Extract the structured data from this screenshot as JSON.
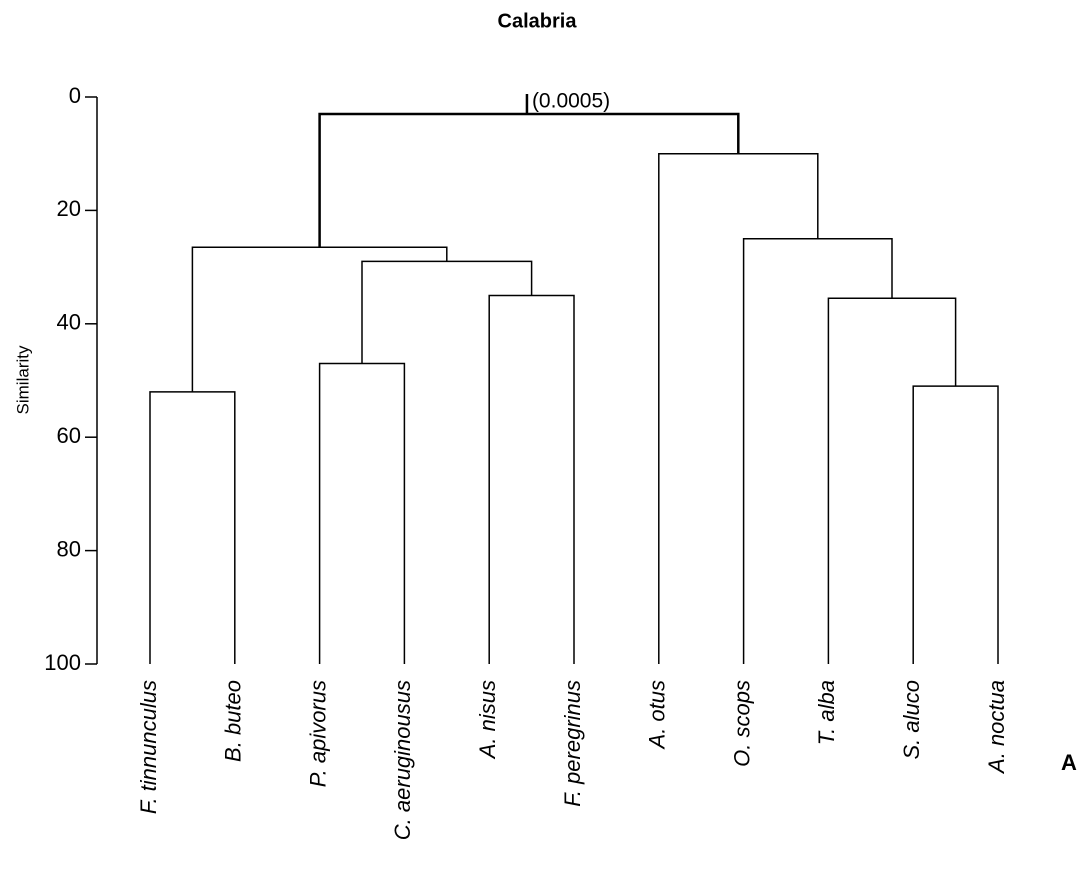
{
  "chart_data": {
    "type": "dendrogram",
    "title": "Calabria",
    "y_label": "Similarity",
    "panel_label": "A",
    "annotation": "(0.0005)",
    "categories": [
      "F. tinnunculus",
      "B. buteo",
      "P. apivorus",
      "C. aeruginousus",
      "A. nisus",
      "F. peregrinus",
      "A. otus",
      "O. scops",
      "T. alba",
      "S. aluco",
      "A. noctua"
    ],
    "merges": [
      {
        "left": 0,
        "right": 1,
        "height": 52
      },
      {
        "left": 2,
        "right": 3,
        "height": 47
      },
      {
        "left": 4,
        "right": 5,
        "height": 35
      },
      {
        "left": 12,
        "right": 13,
        "height": 29
      },
      {
        "left": 11,
        "right": 14,
        "height": 26.5
      },
      {
        "left": 9,
        "right": 10,
        "height": 51
      },
      {
        "left": 8,
        "right": 16,
        "height": 35.5
      },
      {
        "left": 7,
        "right": 17,
        "height": 25
      },
      {
        "left": 6,
        "right": 18,
        "height": 10
      },
      {
        "left": 15,
        "right": 19,
        "height": 3
      }
    ],
    "color": "#000000",
    "ylim": [
      100,
      0
    ],
    "yticks": [
      0,
      20,
      40,
      60,
      80,
      100
    ]
  }
}
